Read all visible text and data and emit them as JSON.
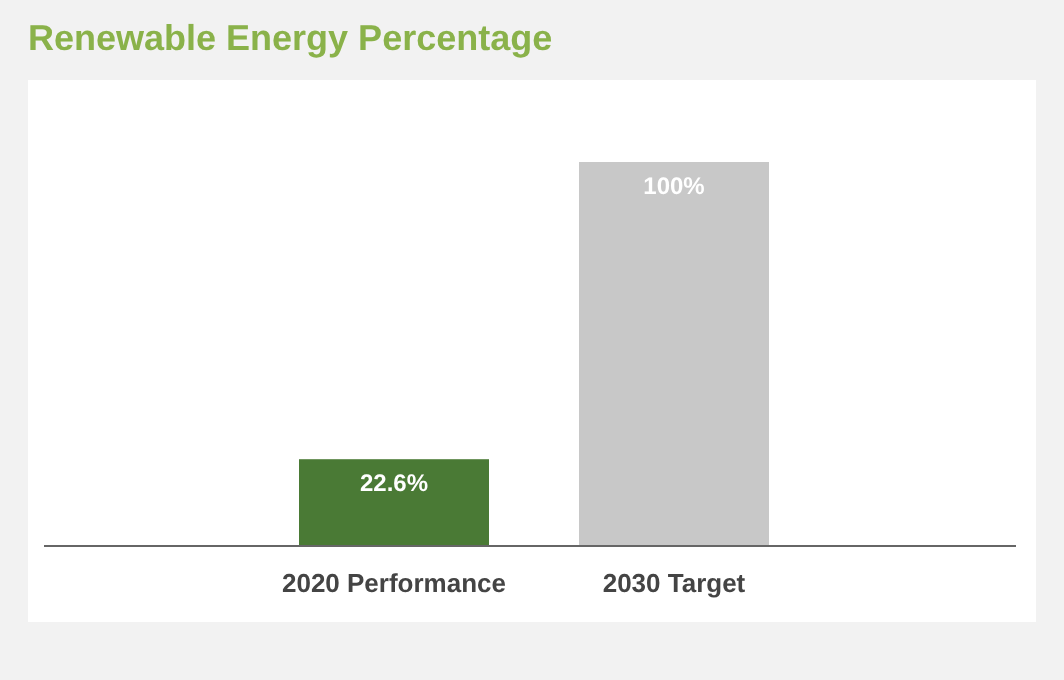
{
  "chart_data": {
    "type": "bar",
    "title": "Renewable Energy Percentage",
    "categories": [
      "2020 Performance",
      "2030 Target"
    ],
    "values": [
      22.6,
      100
    ],
    "colors": [
      "#4a7a35",
      "#c8c8c8"
    ],
    "value_labels": [
      "22.6%",
      "100%"
    ]
  }
}
